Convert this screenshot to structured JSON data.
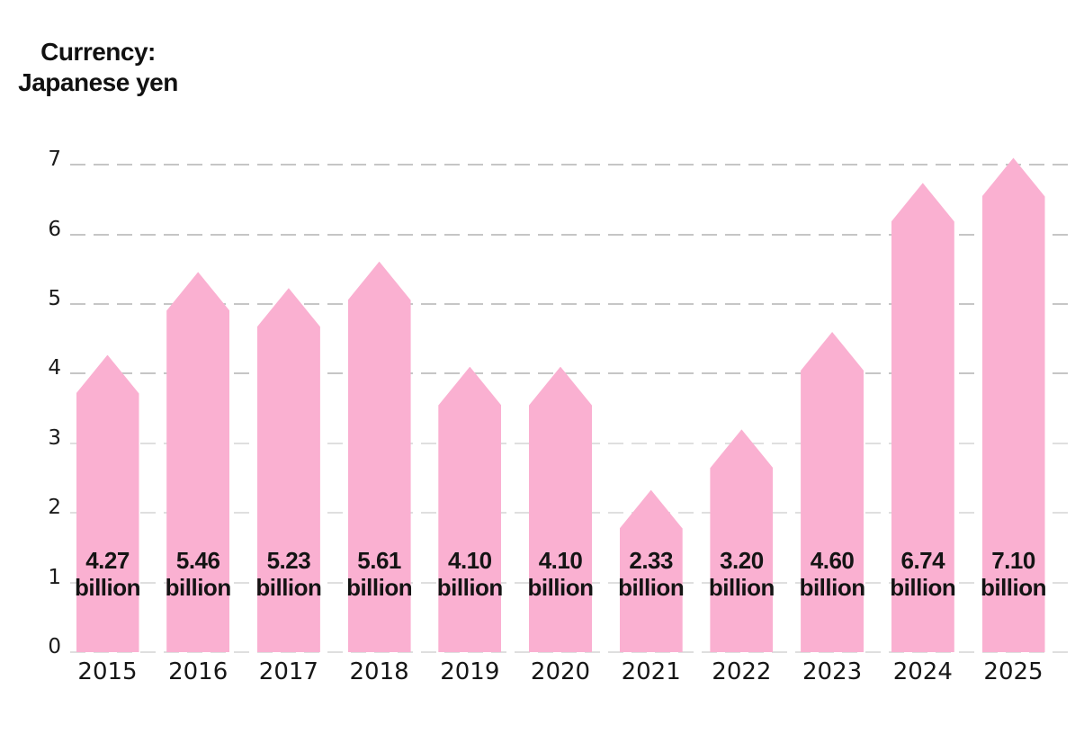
{
  "title": {
    "line1": "Currency:",
    "line2": "Japanese yen"
  },
  "chart_data": {
    "type": "bar",
    "title": "Currency: Japanese yen",
    "categories": [
      "2015",
      "2016",
      "2017",
      "2018",
      "2019",
      "2020",
      "2021",
      "2022",
      "2023",
      "2024",
      "2025"
    ],
    "values": [
      4.27,
      5.46,
      5.23,
      5.61,
      4.1,
      4.1,
      2.33,
      3.2,
      4.6,
      6.74,
      7.1
    ],
    "bar_labels": [
      {
        "amount": "4.27",
        "unit": "billion"
      },
      {
        "amount": "5.46",
        "unit": "billion"
      },
      {
        "amount": "5.23",
        "unit": "billion"
      },
      {
        "amount": "5.61",
        "unit": "billion"
      },
      {
        "amount": "4.10",
        "unit": "billion"
      },
      {
        "amount": "4.10",
        "unit": "billion"
      },
      {
        "amount": "2.33",
        "unit": "billion"
      },
      {
        "amount": "3.20",
        "unit": "billion"
      },
      {
        "amount": "4.60",
        "unit": "billion"
      },
      {
        "amount": "6.74",
        "unit": "billion"
      },
      {
        "amount": "7.10",
        "unit": "billion"
      }
    ],
    "xlabel": "",
    "ylabel": "",
    "y_axis": {
      "ticks": [
        0,
        1,
        2,
        3,
        4,
        5,
        6,
        7
      ],
      "range": [
        0,
        7
      ]
    },
    "legend": "none",
    "grid": "horizontal dashed",
    "bar_shape": "pentagon pointed top",
    "colors": {
      "bar": "#FAB0D1",
      "text": "#141414",
      "grid_major": "#c6c6c6",
      "grid_minor": "#dfdfdf"
    }
  }
}
